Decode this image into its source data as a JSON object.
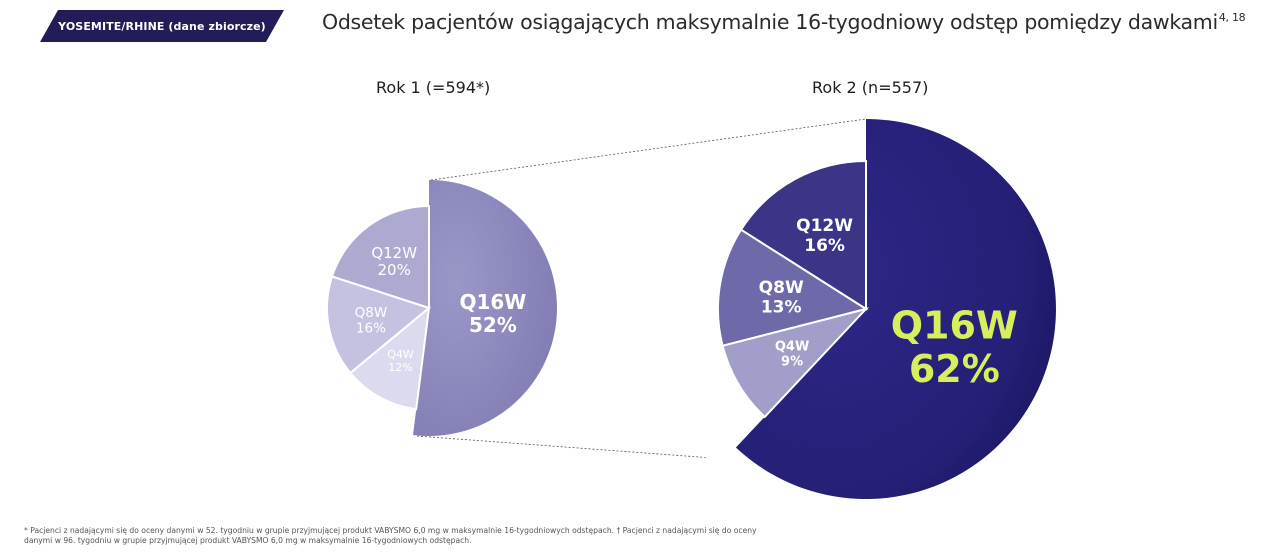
{
  "header": {
    "badge": "YOSEMITE/RHINE (dane zbiorcze)",
    "title": "Odsetek pacjentów osiągających maksymalnie 16-tygodniowy odstęp pomiędzy dawkami",
    "title_refs": "4, 18"
  },
  "chart_data": [
    {
      "type": "pie",
      "title": "Rok 1 (=594*)",
      "categories": [
        "Q16W",
        "Q12W",
        "Q8W",
        "Q4W"
      ],
      "values": [
        52,
        20,
        16,
        12
      ],
      "labels": [
        "52%",
        "20%",
        "16%",
        "12%"
      ],
      "colors": [
        "#8f8cc0",
        "#adaad2",
        "#c4c2e0",
        "#dcdaee"
      ],
      "label_colors": [
        "#ffffff",
        "#ffffff",
        "#ffffff",
        "#ffffff"
      ],
      "exploded": "Q16W"
    },
    {
      "type": "pie",
      "title": "Rok 2 (n=557)",
      "categories": [
        "Q16W",
        "Q12W",
        "Q8W",
        "Q4W"
      ],
      "values": [
        62,
        16,
        13,
        9
      ],
      "labels": [
        "62%",
        "16%",
        "13%",
        "9%"
      ],
      "colors": [
        "#27207a",
        "#3b3487",
        "#6e69a8",
        "#a19ec9"
      ],
      "label_colors": [
        "#d8ef5c",
        "#ffffff",
        "#ffffff",
        "#ffffff"
      ],
      "exploded": "Q16W"
    }
  ],
  "footnote": "* Pacjenci z nadającymi się do oceny danymi w 52. tygodniu w grupie przyjmującej produkt VABYSMO 6,0 mg w maksymalnie 16-tygodniowych odstępach. † Pacjenci z nadającymi się do oceny danymi w 96. tygodniu w grupie przyjmującej produkt VABYSMO 6,0 mg w maksymalnie 16-tygodniowych odstępach."
}
